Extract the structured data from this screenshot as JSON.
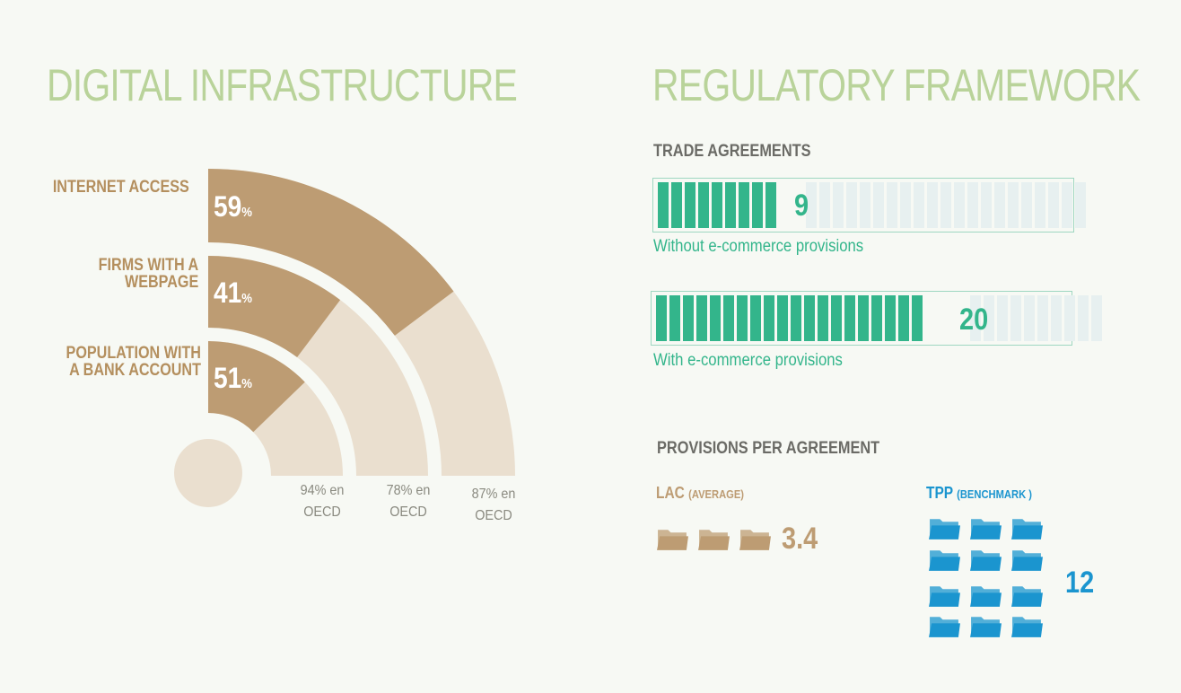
{
  "left_title": "DIGITAL INFRASTRUCTURE",
  "right_title": "REGULATORY FRAMEWORK",
  "colors": {
    "bronze": "#bd9c73",
    "beige": "#eadfcf",
    "green": "#33b58b",
    "blue": "#1b95cf",
    "title_green": "#b9d39a"
  },
  "chart_data": [
    {
      "type": "radial-bar",
      "title": "DIGITAL INFRASTRUCTURE",
      "unit": "%",
      "series": [
        {
          "name": "INTERNET ACCESS",
          "value": 59,
          "display": "59",
          "oecd": 87,
          "oecd_label": "87% en OECD",
          "lines": [
            "INTERNET ACCESS"
          ]
        },
        {
          "name": "FIRMS WITH A WEBPAGE",
          "value": 41,
          "display": "41",
          "oecd": 78,
          "oecd_label": "78% en OECD",
          "lines": [
            "FIRMS WITH A",
            "WEBPAGE"
          ]
        },
        {
          "name": "POPULATION WITH A BANK ACCOUNT",
          "value": 51,
          "display": "51",
          "oecd": 94,
          "oecd_label": "94% en OECD",
          "lines": [
            "POPULATION WITH",
            "A BANK ACCOUNT"
          ]
        }
      ]
    },
    {
      "type": "bar",
      "title": "TRADE AGREEMENTS",
      "total_segments": 30,
      "bars": [
        {
          "label": "Without e-commerce provisions",
          "value": 9,
          "display": "9"
        },
        {
          "label": "With e-commerce provisions",
          "value": 20,
          "display": "20"
        }
      ]
    },
    {
      "type": "pictogram",
      "title": "PROVISIONS PER AGREEMENT",
      "icon": "folder-icon",
      "groups": [
        {
          "label": "LAC",
          "sublabel": "(AVERAGE)",
          "value": 3.4,
          "display": "3.4",
          "icons": 3,
          "color": "#bd9c73"
        },
        {
          "label": "TPP",
          "sublabel": "(BENCHMARK )",
          "value": 12,
          "display": "12",
          "icons": 12,
          "color": "#1b95cf"
        }
      ]
    }
  ]
}
